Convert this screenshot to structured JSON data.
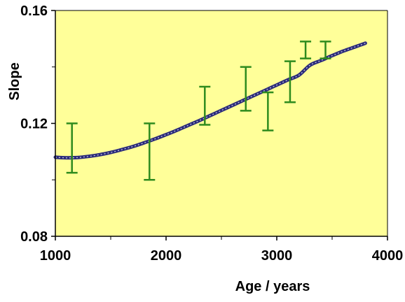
{
  "chart_data": {
    "type": "line",
    "title": "",
    "xlabel": "Age / years",
    "ylabel": "Slope",
    "xlim": [
      1000,
      4000
    ],
    "ylim": [
      0.08,
      0.16
    ],
    "x_ticks": [
      1000,
      2000,
      3000,
      4000
    ],
    "x_tick_labels": [
      "1000",
      "2000",
      "3000",
      "4000"
    ],
    "y_ticks": [
      0.08,
      0.12,
      0.16
    ],
    "y_tick_labels": [
      "0.08",
      "0.12",
      "0.16"
    ],
    "grid": false,
    "colors": {
      "plot_background": "#ffff99",
      "curve": "#2b2b7a",
      "curve_highlight": "#b9b9d6",
      "error_bars": "#2e8b1e",
      "axes": "#000000"
    },
    "series": [
      {
        "type": "line",
        "x": [
          1000,
          1100,
          1200,
          1300,
          1400,
          1500,
          1600,
          1700,
          1800,
          1900,
          2000,
          2100,
          2200,
          2300,
          2400,
          2500,
          2600,
          2700,
          2800,
          2900,
          3000,
          3100,
          3200,
          3300,
          3400,
          3500,
          3600,
          3700,
          3800
        ],
        "y": [
          0.108,
          0.1078,
          0.1079,
          0.1083,
          0.1089,
          0.1097,
          0.1107,
          0.1118,
          0.1131,
          0.1145,
          0.116,
          0.1176,
          0.1193,
          0.121,
          0.1228,
          0.1246,
          0.1264,
          0.1282,
          0.13,
          0.1318,
          0.1336,
          0.1354,
          0.1371,
          0.1406,
          0.1423,
          0.144,
          0.1456,
          0.147,
          0.1484
        ]
      },
      {
        "type": "errorbar",
        "points": [
          {
            "x": 1150,
            "low": 0.1025,
            "high": 0.12
          },
          {
            "x": 1850,
            "low": 0.1,
            "high": 0.12
          },
          {
            "x": 2350,
            "low": 0.1195,
            "high": 0.133
          },
          {
            "x": 2720,
            "low": 0.1245,
            "high": 0.14
          },
          {
            "x": 2920,
            "low": 0.1175,
            "high": 0.131
          },
          {
            "x": 3120,
            "low": 0.1275,
            "high": 0.142
          },
          {
            "x": 3260,
            "low": 0.143,
            "high": 0.149
          },
          {
            "x": 3440,
            "low": 0.143,
            "high": 0.149
          }
        ]
      }
    ]
  }
}
